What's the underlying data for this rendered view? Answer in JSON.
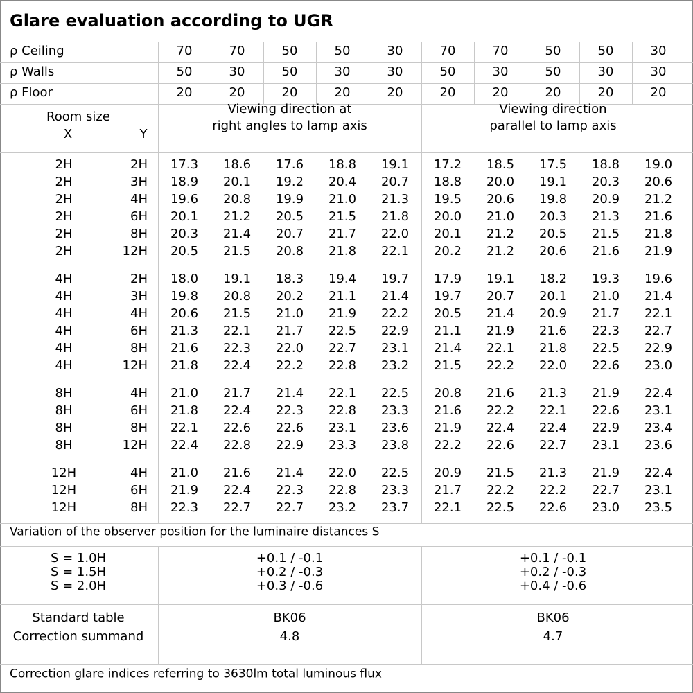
{
  "title": "Glare evaluation according to UGR",
  "reflectances": [
    {
      "label": "ρ Ceiling",
      "values": [
        "70",
        "70",
        "50",
        "50",
        "30",
        "70",
        "70",
        "50",
        "50",
        "30"
      ]
    },
    {
      "label": "ρ Walls",
      "values": [
        "50",
        "30",
        "50",
        "30",
        "30",
        "50",
        "30",
        "50",
        "30",
        "30"
      ]
    },
    {
      "label": "ρ Floor",
      "values": [
        "20",
        "20",
        "20",
        "20",
        "20",
        "20",
        "20",
        "20",
        "20",
        "20"
      ]
    }
  ],
  "room_size": {
    "label": "Room size",
    "x": "X",
    "y": "Y"
  },
  "view_headers": [
    [
      "Viewing direction at",
      "right angles to lamp axis"
    ],
    [
      "Viewing direction",
      "parallel to lamp axis"
    ]
  ],
  "groups": [
    [
      {
        "x": "2H",
        "y": "2H",
        "values": [
          "17.3",
          "18.6",
          "17.6",
          "18.8",
          "19.1",
          "17.2",
          "18.5",
          "17.5",
          "18.8",
          "19.0"
        ]
      },
      {
        "x": "2H",
        "y": "3H",
        "values": [
          "18.9",
          "20.1",
          "19.2",
          "20.4",
          "20.7",
          "18.8",
          "20.0",
          "19.1",
          "20.3",
          "20.6"
        ]
      },
      {
        "x": "2H",
        "y": "4H",
        "values": [
          "19.6",
          "20.8",
          "19.9",
          "21.0",
          "21.3",
          "19.5",
          "20.6",
          "19.8",
          "20.9",
          "21.2"
        ]
      },
      {
        "x": "2H",
        "y": "6H",
        "values": [
          "20.1",
          "21.2",
          "20.5",
          "21.5",
          "21.8",
          "20.0",
          "21.0",
          "20.3",
          "21.3",
          "21.6"
        ]
      },
      {
        "x": "2H",
        "y": "8H",
        "values": [
          "20.3",
          "21.4",
          "20.7",
          "21.7",
          "22.0",
          "20.1",
          "21.2",
          "20.5",
          "21.5",
          "21.8"
        ]
      },
      {
        "x": "2H",
        "y": "12H",
        "values": [
          "20.5",
          "21.5",
          "20.8",
          "21.8",
          "22.1",
          "20.2",
          "21.2",
          "20.6",
          "21.6",
          "21.9"
        ]
      }
    ],
    [
      {
        "x": "4H",
        "y": "2H",
        "values": [
          "18.0",
          "19.1",
          "18.3",
          "19.4",
          "19.7",
          "17.9",
          "19.1",
          "18.2",
          "19.3",
          "19.6"
        ]
      },
      {
        "x": "4H",
        "y": "3H",
        "values": [
          "19.8",
          "20.8",
          "20.2",
          "21.1",
          "21.4",
          "19.7",
          "20.7",
          "20.1",
          "21.0",
          "21.4"
        ]
      },
      {
        "x": "4H",
        "y": "4H",
        "values": [
          "20.6",
          "21.5",
          "21.0",
          "21.9",
          "22.2",
          "20.5",
          "21.4",
          "20.9",
          "21.7",
          "22.1"
        ]
      },
      {
        "x": "4H",
        "y": "6H",
        "values": [
          "21.3",
          "22.1",
          "21.7",
          "22.5",
          "22.9",
          "21.1",
          "21.9",
          "21.6",
          "22.3",
          "22.7"
        ]
      },
      {
        "x": "4H",
        "y": "8H",
        "values": [
          "21.6",
          "22.3",
          "22.0",
          "22.7",
          "23.1",
          "21.4",
          "22.1",
          "21.8",
          "22.5",
          "22.9"
        ]
      },
      {
        "x": "4H",
        "y": "12H",
        "values": [
          "21.8",
          "22.4",
          "22.2",
          "22.8",
          "23.2",
          "21.5",
          "22.2",
          "22.0",
          "22.6",
          "23.0"
        ]
      }
    ],
    [
      {
        "x": "8H",
        "y": "4H",
        "values": [
          "21.0",
          "21.7",
          "21.4",
          "22.1",
          "22.5",
          "20.8",
          "21.6",
          "21.3",
          "21.9",
          "22.4"
        ]
      },
      {
        "x": "8H",
        "y": "6H",
        "values": [
          "21.8",
          "22.4",
          "22.3",
          "22.8",
          "23.3",
          "21.6",
          "22.2",
          "22.1",
          "22.6",
          "23.1"
        ]
      },
      {
        "x": "8H",
        "y": "8H",
        "values": [
          "22.1",
          "22.6",
          "22.6",
          "23.1",
          "23.6",
          "21.9",
          "22.4",
          "22.4",
          "22.9",
          "23.4"
        ]
      },
      {
        "x": "8H",
        "y": "12H",
        "values": [
          "22.4",
          "22.8",
          "22.9",
          "23.3",
          "23.8",
          "22.2",
          "22.6",
          "22.7",
          "23.1",
          "23.6"
        ]
      }
    ],
    [
      {
        "x": "12H",
        "y": "4H",
        "values": [
          "21.0",
          "21.6",
          "21.4",
          "22.0",
          "22.5",
          "20.9",
          "21.5",
          "21.3",
          "21.9",
          "22.4"
        ]
      },
      {
        "x": "12H",
        "y": "6H",
        "values": [
          "21.9",
          "22.4",
          "22.3",
          "22.8",
          "23.3",
          "21.7",
          "22.2",
          "22.2",
          "22.7",
          "23.1"
        ]
      },
      {
        "x": "12H",
        "y": "8H",
        "values": [
          "22.3",
          "22.7",
          "22.7",
          "23.2",
          "23.7",
          "22.1",
          "22.5",
          "22.6",
          "23.0",
          "23.5"
        ]
      }
    ]
  ],
  "variation": {
    "title": "Variation of the observer position for the luminaire distances S",
    "labels": [
      "S = 1.0H",
      "S = 1.5H",
      "S = 2.0H"
    ],
    "right_angles": [
      "+0.1 / -0.1",
      "+0.2 / -0.3",
      "+0.3 / -0.6"
    ],
    "parallel": [
      "+0.1 / -0.1",
      "+0.2 / -0.3",
      "+0.4 / -0.6"
    ]
  },
  "standard": {
    "labels": [
      "Standard table",
      "Correction summand"
    ],
    "right_angles": [
      "BK06",
      "4.8"
    ],
    "parallel": [
      "BK06",
      "4.7"
    ]
  },
  "footer": "Correction glare indices referring to 3630lm total luminous flux"
}
